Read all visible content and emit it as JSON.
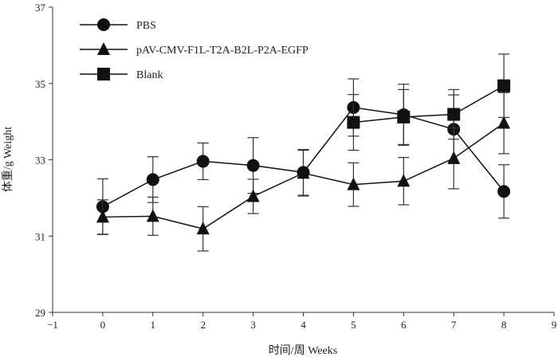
{
  "chart_data": {
    "type": "line",
    "title": "",
    "xlabel": "时间/周 Weeks",
    "ylabel": "体重/g Weight",
    "xlim": [
      -1,
      9
    ],
    "ylim": [
      29,
      37
    ],
    "xticks": [
      -1,
      0,
      1,
      2,
      3,
      4,
      5,
      6,
      7,
      8,
      9
    ],
    "yticks": [
      29,
      31,
      33,
      35,
      37
    ],
    "grid": false,
    "legend_position": "top-left",
    "series": [
      {
        "name": "PBS",
        "marker": "circle",
        "x": [
          0,
          1,
          2,
          3,
          4,
          5,
          6,
          7,
          8
        ],
        "values": [
          31.77,
          32.48,
          32.96,
          32.85,
          32.67,
          34.37,
          34.18,
          33.8,
          32.17
        ],
        "errors": [
          0.73,
          0.6,
          0.48,
          0.73,
          0.6,
          0.75,
          0.8,
          0.9,
          0.7
        ]
      },
      {
        "name": "pAV-CMV-F1L-T2A-B2L-P2A-EGFP",
        "marker": "triangle",
        "x": [
          0,
          1,
          2,
          3,
          4,
          5,
          6,
          7,
          8
        ],
        "values": [
          31.5,
          31.52,
          31.19,
          32.04,
          32.65,
          32.35,
          32.44,
          33.04,
          33.96
        ],
        "errors": [
          0.45,
          0.5,
          0.58,
          0.45,
          0.6,
          0.57,
          0.62,
          0.8,
          0.8
        ]
      },
      {
        "name": "Blank",
        "marker": "square",
        "x": [
          5,
          6,
          7,
          8
        ],
        "values": [
          33.98,
          34.12,
          34.19,
          34.94
        ],
        "errors": [
          0.73,
          0.72,
          0.65,
          0.83
        ]
      }
    ]
  }
}
